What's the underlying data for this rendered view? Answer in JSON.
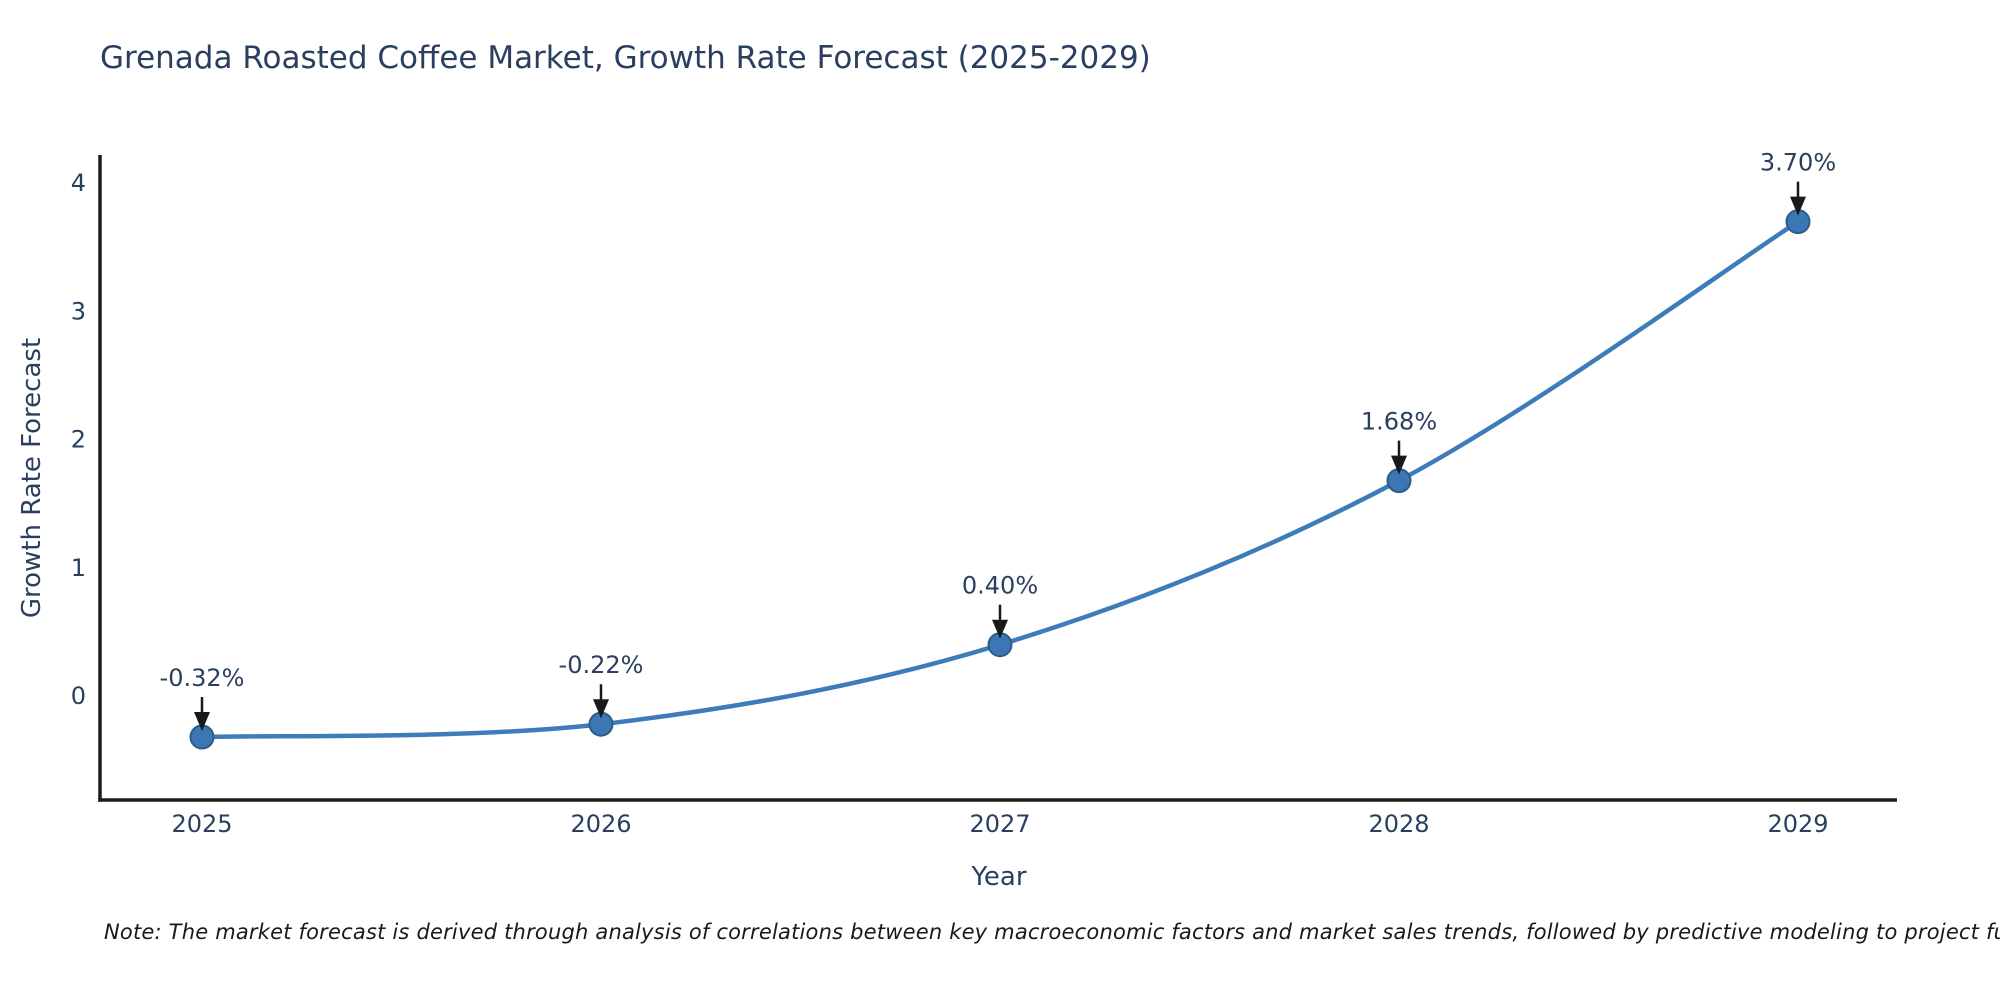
{
  "page": {
    "background": "#ffffff"
  },
  "note": {
    "text": "Note: The market forecast is derived through analysis of correlations between key macroeconomic factors and market sales trends, followed by predictive modeling to project future sales."
  },
  "chart_data": {
    "type": "line",
    "title": "Grenada Roasted Coffee Market, Growth Rate Forecast (2025-2029)",
    "xlabel": "Year",
    "ylabel": "Growth Rate Forecast",
    "x": [
      2025,
      2026,
      2027,
      2028,
      2029
    ],
    "x_tick_labels": [
      "2025",
      "2026",
      "2027",
      "2028",
      "2029"
    ],
    "series": [
      {
        "name": "Growth Rate Forecast",
        "values": [
          -0.32,
          -0.22,
          0.4,
          1.68,
          3.7
        ],
        "point_labels": [
          "-0.32%",
          "-0.22%",
          "0.40%",
          "1.68%",
          "3.70%"
        ]
      }
    ],
    "yticks": [
      0,
      1,
      2,
      3,
      4
    ],
    "ylim": [
      -0.82,
      4.22
    ],
    "grid": false,
    "legend": "none",
    "line_shape": "spline",
    "marker": "circle",
    "annotation_style": "black-arrow-above-point",
    "colors": {
      "line": "#3d7cb8",
      "marker_fill": "#3a77b4",
      "marker_edge": "#2b5d88",
      "axis_line": "#1c1c1c",
      "tick_text": "#2a3f5f",
      "annotation_text": "#2a3f5f",
      "arrow": "#1a1a1a",
      "title_text": "#2a3f5f"
    }
  }
}
